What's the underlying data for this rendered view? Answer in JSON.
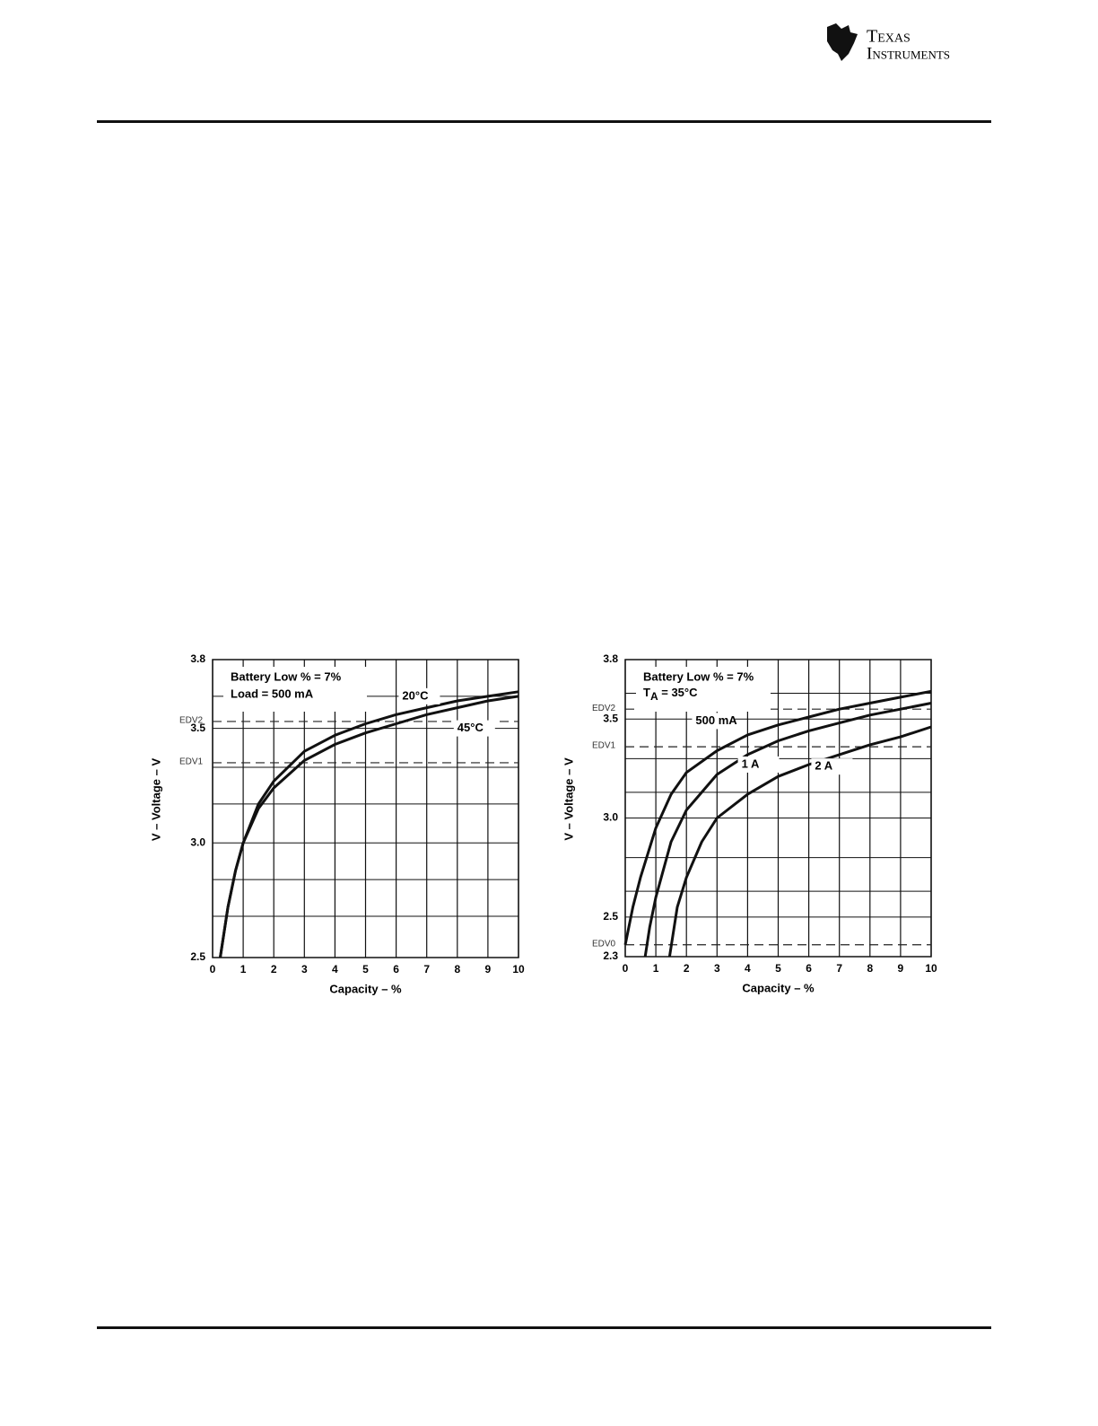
{
  "header": {
    "logo": [
      "Texas",
      "Instruments"
    ]
  },
  "chart_data": [
    {
      "type": "line",
      "xlabel": "Capacity – %",
      "ylabel": "V – Voltage – V",
      "xlim": [
        0,
        10
      ],
      "xticks": [
        0,
        1,
        2,
        3,
        4,
        5,
        6,
        7,
        8,
        9,
        10
      ],
      "ylim": [
        2.5,
        3.8
      ],
      "yticks": [
        {
          "value": 2.5,
          "label": "2.5"
        },
        {
          "value": 3,
          "label": "3.0"
        },
        {
          "value": 3.5,
          "label": "3.5"
        },
        {
          "value": 3.8,
          "label": "3.8"
        }
      ],
      "ygrid": [
        2.68,
        2.84,
        3.17,
        3.33,
        3.64
      ],
      "grid": true,
      "annotations": [
        "Battery Low % = 7%",
        "Load = 500 mA"
      ],
      "thresholds": [
        {
          "label": "EDV2",
          "value": 3.53
        },
        {
          "label": "EDV1",
          "value": 3.35
        }
      ],
      "series": [
        {
          "name": "20°C",
          "color": "#111111",
          "x": [
            0.25,
            0.5,
            0.75,
            1,
            1.5,
            2,
            3,
            4,
            5,
            6,
            7,
            8,
            9,
            10
          ],
          "values": [
            2.5,
            2.72,
            2.88,
            3.0,
            3.17,
            3.27,
            3.4,
            3.47,
            3.52,
            3.56,
            3.59,
            3.62,
            3.64,
            3.66
          ]
        },
        {
          "name": "45°C",
          "color": "#111111",
          "x": [
            0.25,
            0.5,
            0.75,
            1,
            1.5,
            2,
            3,
            4,
            5,
            6,
            7,
            8,
            9,
            10
          ],
          "values": [
            2.5,
            2.72,
            2.88,
            3.0,
            3.15,
            3.24,
            3.36,
            3.43,
            3.48,
            3.52,
            3.56,
            3.59,
            3.62,
            3.64
          ]
        }
      ]
    },
    {
      "type": "line",
      "xlabel": "Capacity – %",
      "ylabel": "V – Voltage – V",
      "xlim": [
        0,
        10
      ],
      "xticks": [
        0,
        1,
        2,
        3,
        4,
        5,
        6,
        7,
        8,
        9,
        10
      ],
      "ylim": [
        2.3,
        3.8
      ],
      "yticks": [
        {
          "value": 2.3,
          "label": "2.3"
        },
        {
          "value": 2.5,
          "label": "2.5"
        },
        {
          "value": 3,
          "label": "3.0"
        },
        {
          "value": 3.5,
          "label": "3.5"
        },
        {
          "value": 3.8,
          "label": "3.8"
        }
      ],
      "ygrid": [
        2.63,
        2.8,
        3.13,
        3.3,
        3.63
      ],
      "grid": true,
      "annotations": [
        "Battery Low % = 7%",
        "T",
        "A",
        " = 35°C"
      ],
      "thresholds": [
        {
          "label": "EDV2",
          "value": 3.55
        },
        {
          "label": "EDV1",
          "value": 3.36
        },
        {
          "label": "EDV0",
          "value": 2.36
        }
      ],
      "series": [
        {
          "name": "500 mA",
          "color": "#111111",
          "x": [
            0,
            0.25,
            0.5,
            1,
            1.5,
            2,
            3,
            4,
            5,
            6,
            7,
            8,
            9,
            10
          ],
          "values": [
            2.36,
            2.55,
            2.7,
            2.95,
            3.12,
            3.23,
            3.34,
            3.42,
            3.47,
            3.51,
            3.55,
            3.58,
            3.61,
            3.64
          ]
        },
        {
          "name": "1 A",
          "color": "#111111",
          "x": [
            0.65,
            0.8,
            1,
            1.5,
            2,
            3,
            4,
            5,
            6,
            7,
            8,
            9,
            10
          ],
          "values": [
            2.3,
            2.45,
            2.6,
            2.88,
            3.04,
            3.22,
            3.32,
            3.39,
            3.44,
            3.48,
            3.52,
            3.55,
            3.58
          ]
        },
        {
          "name": "2 A",
          "color": "#111111",
          "x": [
            1.45,
            1.7,
            2,
            2.5,
            3,
            4,
            5,
            6,
            7,
            8,
            9,
            10
          ],
          "values": [
            2.3,
            2.55,
            2.7,
            2.88,
            3.0,
            3.12,
            3.21,
            3.27,
            3.32,
            3.37,
            3.41,
            3.46
          ]
        }
      ]
    }
  ]
}
